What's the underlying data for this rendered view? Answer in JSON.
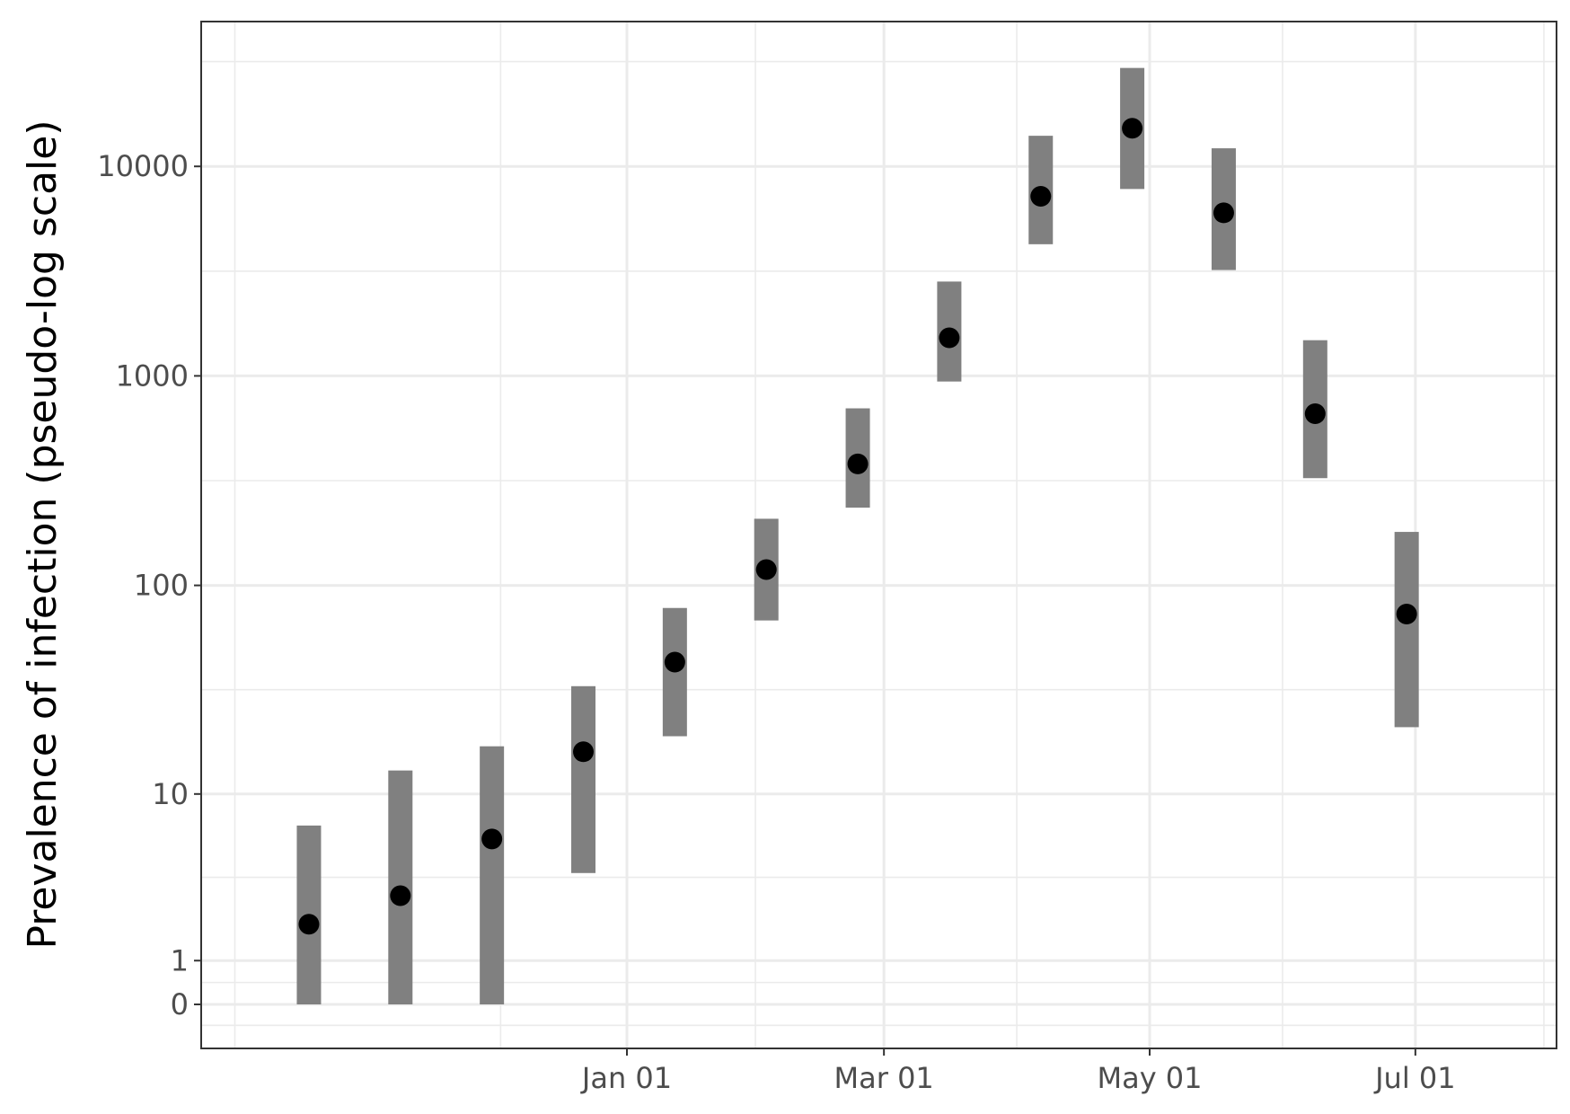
{
  "chart_data": {
    "type": "scatter",
    "title": "",
    "xlabel": "",
    "ylabel": "Prevalence of infection (pseudo-log scale)",
    "y_scale": "pseudo-log",
    "x_axis": {
      "type": "date",
      "tick_labels": [
        "Jan 01",
        "Mar 01",
        "May 01",
        "Jul 01"
      ]
    },
    "y_axis": {
      "tick_labels": [
        "0",
        "1",
        "10",
        "100",
        "1000",
        "10000"
      ],
      "tick_values": [
        0,
        1,
        10,
        100,
        1000,
        10000
      ]
    },
    "grid": true,
    "legend": "none",
    "colors": {
      "point": "#000000",
      "interval": "#808080"
    },
    "series": [
      {
        "points": [
          {
            "x": "Oct 20",
            "y": 2,
            "ymin": 0,
            "ymax": 7
          },
          {
            "x": "Nov 10",
            "y": 3,
            "ymin": 0,
            "ymax": 13
          },
          {
            "x": "Dec 01",
            "y": 6,
            "ymin": 0,
            "ymax": 17
          },
          {
            "x": "Dec 22",
            "y": 16,
            "ymin": 4,
            "ymax": 33
          },
          {
            "x": "Jan 12",
            "y": 43,
            "ymin": 19,
            "ymax": 78
          },
          {
            "x": "Feb 02",
            "y": 119,
            "ymin": 68,
            "ymax": 208
          },
          {
            "x": "Feb 23",
            "y": 380,
            "ymin": 235,
            "ymax": 700
          },
          {
            "x": "Mar 16",
            "y": 1520,
            "ymin": 940,
            "ymax": 2820
          },
          {
            "x": "Apr 06",
            "y": 7200,
            "ymin": 4250,
            "ymax": 14000
          },
          {
            "x": "Apr 27",
            "y": 15200,
            "ymin": 7800,
            "ymax": 29500
          },
          {
            "x": "May 18",
            "y": 6000,
            "ymin": 3200,
            "ymax": 12200
          },
          {
            "x": "Jun 08",
            "y": 660,
            "ymin": 325,
            "ymax": 1480
          },
          {
            "x": "Jun 29",
            "y": 73,
            "ymin": 21,
            "ymax": 180
          }
        ]
      }
    ]
  }
}
